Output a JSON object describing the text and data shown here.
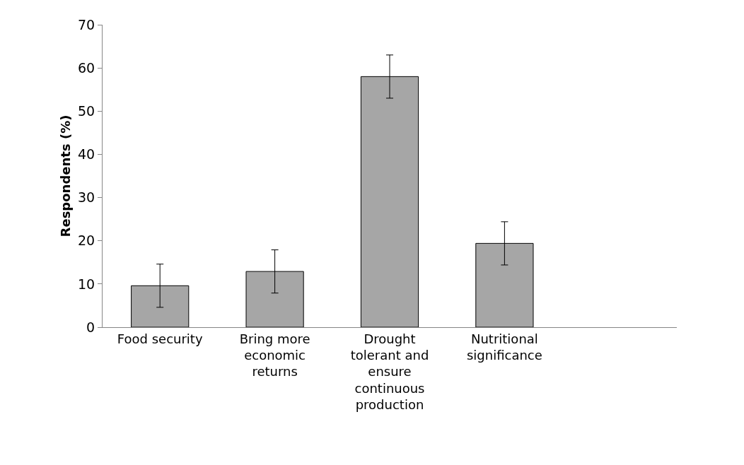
{
  "chart_data": {
    "type": "bar",
    "ylabel": "Respondents (%)",
    "categories": [
      "Food security",
      "Bring more economic returns",
      "Drought tolerant and ensure continuous production",
      "Nutritional significance",
      null
    ],
    "values": [
      9.6,
      12.9,
      58,
      19.4,
      null
    ],
    "errors": [
      5,
      5,
      5,
      5,
      null
    ],
    "color": "#a6a6a6",
    "ylim": [
      0,
      70
    ],
    "yticks": [
      0,
      10,
      20,
      30,
      40,
      50,
      60,
      70
    ]
  }
}
